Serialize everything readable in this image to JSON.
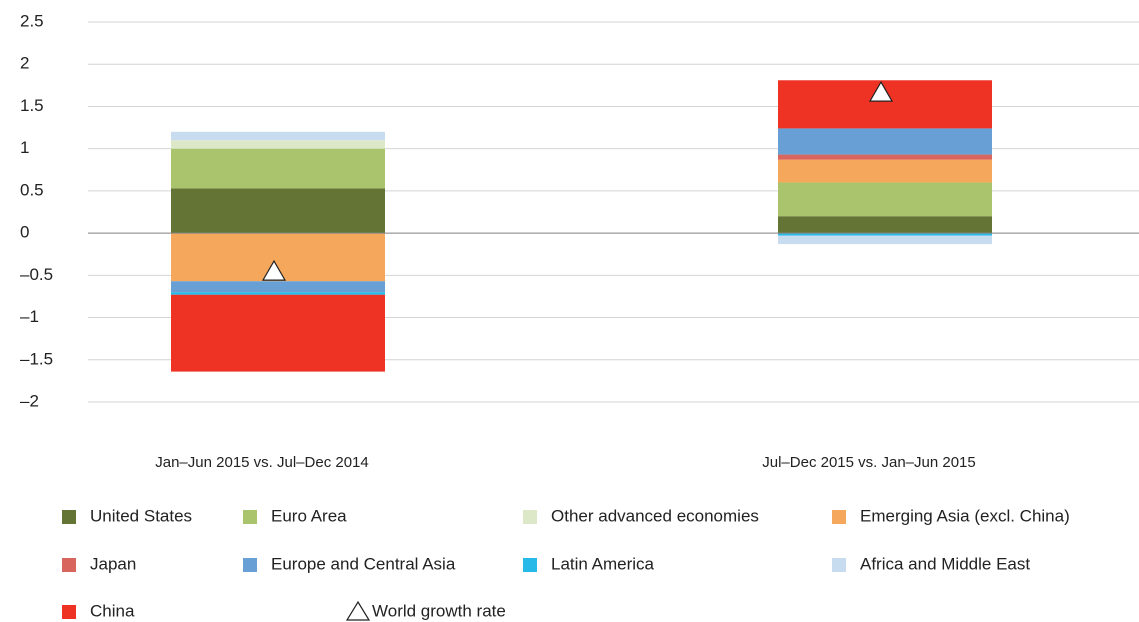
{
  "chart_data": {
    "type": "stacked-bar",
    "categories": [
      "Jan–Jun 2015 vs. Jul–Dec 2014",
      "Jul–Dec 2015 vs. Jan–Jun 2015"
    ],
    "series": [
      {
        "name": "United States",
        "color": "#647434",
        "values": [
          0.53,
          0.2
        ]
      },
      {
        "name": "Euro Area",
        "color": "#a9c46c",
        "values": [
          0.47,
          0.4
        ]
      },
      {
        "name": "Other advanced economies",
        "color": "#dde8c8",
        "values": [
          0.1,
          0
        ]
      },
      {
        "name": "Emerging Asia (excl. China)",
        "color": "#f5a85c",
        "values": [
          -0.57,
          0.27
        ]
      },
      {
        "name": "Japan",
        "color": "#d9665e",
        "values": [
          0,
          0.06
        ]
      },
      {
        "name": "Europe and Central Asia",
        "color": "#689fd4",
        "values": [
          -0.13,
          0.31
        ]
      },
      {
        "name": "Latin America",
        "color": "#27b9e8",
        "values": [
          -0.03,
          -0.03
        ]
      },
      {
        "name": "Africa and Middle East",
        "color": "#c8dcf0",
        "values": [
          0.1,
          -0.1
        ]
      },
      {
        "name": "China",
        "color": "#ee3224",
        "values": [
          -0.91,
          0.57
        ]
      }
    ],
    "world_growth": {
      "name": "World growth rate",
      "values": [
        -0.45,
        1.67
      ]
    },
    "ylim": [
      -2,
      2.5
    ],
    "yticks": [
      2.5,
      2,
      1.5,
      1,
      0.5,
      0,
      {
        "value": -0.5,
        "label": "–0.5"
      },
      {
        "value": -1,
        "label": "–1"
      },
      {
        "value": -1.5,
        "label": "–1.5"
      },
      {
        "value": -2,
        "label": "–2"
      }
    ],
    "grid": true
  }
}
